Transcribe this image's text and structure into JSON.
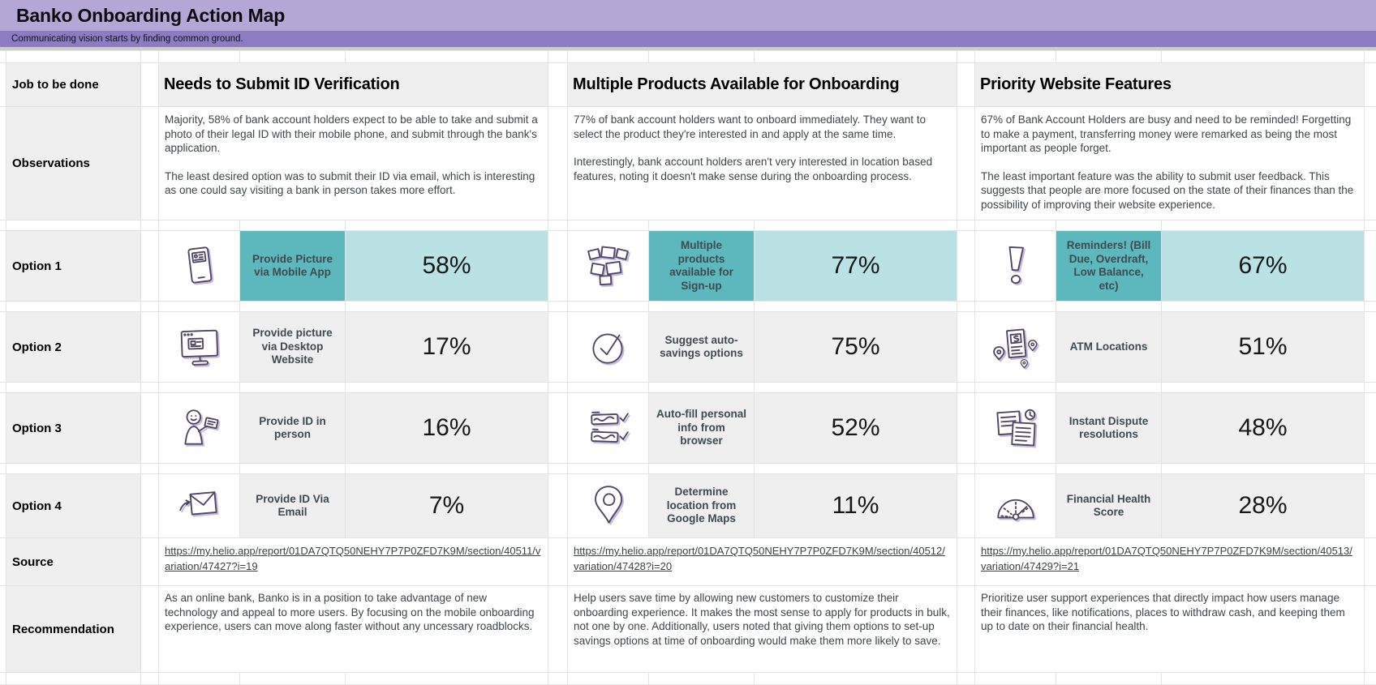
{
  "title": "Banko Onboarding Action Map",
  "subtitle": "Communicating vision starts by finding common ground.",
  "row_labels": {
    "job": "Job to be done",
    "observations": "Observations",
    "option1": "Option 1",
    "option2": "Option 2",
    "option3": "Option 3",
    "option4": "Option 4",
    "source": "Source",
    "recommendation": "Recommendation"
  },
  "colors": {
    "title_bar": "#b4a7d6",
    "subtitle_bar": "#8e7cc3",
    "highlight_teal": "#5cb8bd",
    "highlight_teal_light": "#bae2e4",
    "cell_gray": "#efefef"
  },
  "groups": [
    {
      "header": "Needs to Submit ID Verification",
      "observation": [
        "Majority, 58% of bank account holders expect to be able to take and submit a photo of their legal ID with their mobile phone, and submit through the bank's application.",
        "The least desired option was to submit their ID via email, which is interesting as one could say visiting a bank in person takes more effort."
      ],
      "options": [
        {
          "label": "Provide Picture via Mobile App",
          "value": "58%",
          "icon": "mobile-phone-id-icon",
          "highlight": true
        },
        {
          "label": "Provide picture via Desktop Website",
          "value": "17%",
          "icon": "desktop-website-icon",
          "highlight": false
        },
        {
          "label": "Provide ID in person",
          "value": "16%",
          "icon": "person-with-id-icon",
          "highlight": false
        },
        {
          "label": "Provide ID Via Email",
          "value": "7%",
          "icon": "email-envelope-icon",
          "highlight": false
        }
      ],
      "source": "https://my.helio.app/report/01DA7QTQ50NEHY7P7P0ZFD7K9M/section/40511/variation/47427?i=19",
      "recommendation": "As an online bank, Banko is in a position to take advantage of new technology and appeal to more users. By focusing on the mobile onboarding experience, users can move along faster without any uncessary roadblocks."
    },
    {
      "header": "Multiple Products Available for Onboarding",
      "observation": [
        "77% of bank account holders want to onboard immediately. They want to select the product they're interested in and apply at the same time.",
        "Interestingly, bank account holders aren't very interested in location based features, noting it doesn't make sense during the onboarding process."
      ],
      "options": [
        {
          "label": "Multiple products available for Sign-up",
          "value": "77%",
          "icon": "product-cards-icon",
          "highlight": true
        },
        {
          "label": "Suggest auto-savings options",
          "value": "75%",
          "icon": "checkmark-circle-icon",
          "highlight": false
        },
        {
          "label": "Auto-fill personal info from browser",
          "value": "52%",
          "icon": "form-fields-checked-icon",
          "highlight": false
        },
        {
          "label": "Determine location from Google Maps",
          "value": "11%",
          "icon": "location-pin-icon",
          "highlight": false
        }
      ],
      "source": "https://my.helio.app/report/01DA7QTQ50NEHY7P7P0ZFD7K9M/section/40512/variation/47428?i=20",
      "recommendation": "Help users save time by allowing new customers to customize their onboarding experience. It makes the most sense to apply for products in bulk, not one by one. Additionally, users noted that giving them options to set-up savings options at time of onboarding would make them more likely to save."
    },
    {
      "header": "Priority Website Features",
      "observation": [
        "67% of Bank Account Holders are busy and need to be reminded! Forgetting to make a payment, transferring money were remarked as being the most important as people forget.",
        "The least important feature was the ability to submit user feedback. This suggests that people are more focused on the state of their finances than the possibility of improving their website experience."
      ],
      "options": [
        {
          "label": "Reminders! (Bill Due, Overdraft, Low Balance, etc)",
          "value": "67%",
          "icon": "exclamation-mark-icon",
          "highlight": true
        },
        {
          "label": "ATM Locations",
          "value": "51%",
          "icon": "atm-locations-icon",
          "highlight": false
        },
        {
          "label": "Instant Dispute resolutions",
          "value": "48%",
          "icon": "dispute-documents-icon",
          "highlight": false
        },
        {
          "label": "Financial Health Score",
          "value": "28%",
          "icon": "gauge-icon",
          "highlight": false
        }
      ],
      "source": "https://my.helio.app/report/01DA7QTQ50NEHY7P7P0ZFD7K9M/section/40513/variation/47429?i=21",
      "recommendation": "Prioritize user support experiences that directly impact how users manage their finances, like notifications, places to withdraw cash, and keeping them up to date on their financial health."
    }
  ]
}
